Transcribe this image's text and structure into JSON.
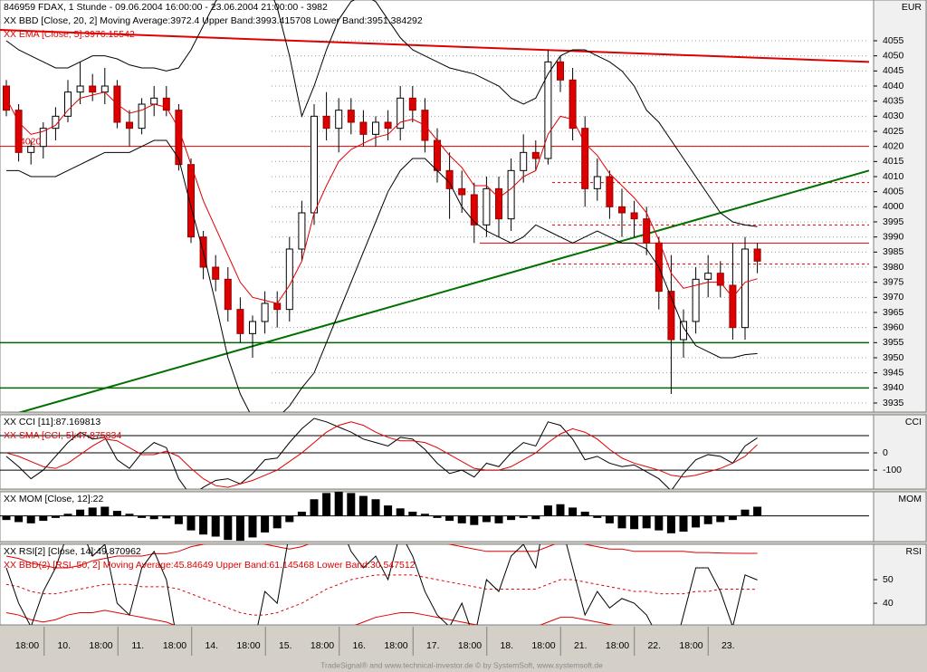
{
  "chart_data": [
    {
      "type": "candlestick",
      "title": "846959  FDAX, 1 Stunde - 09.06.2004 16:00:00 - 23.06.2004 21:00:00 - 3982",
      "unit": "EUR",
      "legend": [
        {
          "text": "XX BBD [Close, 20, 2] Moving Average:3972.4 Upper Band:3993.415708 Lower Band:3951.384292",
          "color": "#000000"
        },
        {
          "text": "XX EMA [Close, 5]:3976.15542",
          "color": "#e00000"
        }
      ],
      "annotation": "4020",
      "ylim": [
        3932,
        4068.5
      ],
      "yticks": [
        3935,
        3940,
        3945,
        3950,
        3955,
        3960,
        3965,
        3970,
        3975,
        3980,
        3985,
        3990,
        3995,
        4000,
        4005,
        4010,
        4015,
        4020,
        4025,
        4030,
        4035,
        4040,
        4045,
        4050,
        4055
      ],
      "up_color": "#ffffff",
      "down_color": "#dd0000",
      "ohlc": [
        [
          4040,
          4042,
          4030,
          4032
        ],
        [
          4032,
          4034,
          4015,
          4018
        ],
        [
          4018,
          4022,
          4014,
          4020
        ],
        [
          4020,
          4028,
          4016,
          4026
        ],
        [
          4026,
          4033,
          4022,
          4030
        ],
        [
          4030,
          4042,
          4028,
          4038
        ],
        [
          4038,
          4048,
          4034,
          4040
        ],
        [
          4040,
          4044,
          4035,
          4038
        ],
        [
          4038,
          4046,
          4034,
          4040
        ],
        [
          4040,
          4042,
          4026,
          4028
        ],
        [
          4028,
          4032,
          4020,
          4026
        ],
        [
          4026,
          4036,
          4024,
          4034
        ],
        [
          4034,
          4040,
          4030,
          4036
        ],
        [
          4036,
          4040,
          4030,
          4032
        ],
        [
          4032,
          4034,
          4012,
          4014
        ],
        [
          4014,
          4016,
          3988,
          3990
        ],
        [
          3990,
          3992,
          3976,
          3980
        ],
        [
          3980,
          3984,
          3972,
          3976
        ],
        [
          3976,
          3980,
          3962,
          3966
        ],
        [
          3966,
          3970,
          3955,
          3958
        ],
        [
          3958,
          3964,
          3950,
          3962
        ],
        [
          3962,
          3972,
          3958,
          3968
        ],
        [
          3968,
          3972,
          3960,
          3966
        ],
        [
          3966,
          3990,
          3962,
          3986
        ],
        [
          3986,
          4002,
          3982,
          3998
        ],
        [
          3998,
          4034,
          3994,
          4030
        ],
        [
          4030,
          4038,
          4022,
          4026
        ],
        [
          4026,
          4036,
          4018,
          4032
        ],
        [
          4032,
          4036,
          4024,
          4028
        ],
        [
          4028,
          4032,
          4020,
          4024
        ],
        [
          4024,
          4030,
          4020,
          4028
        ],
        [
          4028,
          4032,
          4022,
          4026
        ],
        [
          4026,
          4040,
          4022,
          4036
        ],
        [
          4036,
          4040,
          4028,
          4032
        ],
        [
          4032,
          4036,
          4018,
          4022
        ],
        [
          4022,
          4026,
          4008,
          4012
        ],
        [
          4012,
          4018,
          3996,
          4006
        ],
        [
          4006,
          4012,
          3998,
          4004
        ],
        [
          4004,
          4008,
          3988,
          3994
        ],
        [
          3994,
          4010,
          3990,
          4006
        ],
        [
          4006,
          4010,
          3990,
          3996
        ],
        [
          3996,
          4016,
          3992,
          4012
        ],
        [
          4012,
          4024,
          4008,
          4018
        ],
        [
          4018,
          4022,
          4012,
          4016
        ],
        [
          4016,
          4052,
          4014,
          4048
        ],
        [
          4048,
          4050,
          4038,
          4042
        ],
        [
          4042,
          4046,
          4022,
          4026
        ],
        [
          4026,
          4030,
          4000,
          4006
        ],
        [
          4006,
          4016,
          4002,
          4010
        ],
        [
          4010,
          4012,
          3996,
          4000
        ],
        [
          4000,
          4006,
          3990,
          3998
        ],
        [
          3998,
          4002,
          3990,
          3996
        ],
        [
          3996,
          4000,
          3984,
          3988
        ],
        [
          3988,
          3990,
          3966,
          3972
        ],
        [
          3972,
          3984,
          3938,
          3956
        ],
        [
          3956,
          3966,
          3950,
          3962
        ],
        [
          3962,
          3980,
          3958,
          3976
        ],
        [
          3976,
          3984,
          3970,
          3978
        ],
        [
          3978,
          3982,
          3970,
          3974
        ],
        [
          3974,
          3988,
          3956,
          3960
        ],
        [
          3960,
          3990,
          3956,
          3986
        ],
        [
          3986,
          3988,
          3978,
          3982
        ]
      ],
      "overlays": [
        {
          "color": "#000000",
          "values": [
            4055,
            4052,
            4050,
            4048,
            4046,
            4046,
            4048,
            4050,
            4050,
            4049,
            4047,
            4046,
            4046,
            4045,
            4046,
            4052,
            4060,
            4068,
            4074,
            4078,
            4080,
            4076,
            4066,
            4050,
            4030,
            4040,
            4052,
            4062,
            4068,
            4070,
            4068,
            4062,
            4056,
            4052,
            4050,
            4048,
            4046,
            4045,
            4044,
            4042,
            4040,
            4036,
            4034,
            4036,
            4044,
            4050,
            4052,
            4052,
            4050,
            4048,
            4045,
            4040,
            4032,
            4028,
            4022,
            4016,
            4010,
            4004,
            3998,
            3995,
            3994,
            3993.42
          ]
        },
        {
          "color": "#000000",
          "values": [
            4012,
            4012,
            4010,
            4010,
            4010,
            4012,
            4014,
            4016,
            4018,
            4018,
            4018,
            4020,
            4022,
            4022,
            4016,
            4000,
            3985,
            3968,
            3950,
            3938,
            3930,
            3928,
            3930,
            3934,
            3940,
            3945,
            3955,
            3965,
            3975,
            3985,
            3995,
            4005,
            4012,
            4016,
            4016,
            4012,
            4008,
            4000,
            3995,
            3992,
            3990,
            3988,
            3990,
            3994,
            3992,
            3990,
            3988,
            3990,
            3992,
            3990,
            3988,
            3988,
            3986,
            3980,
            3970,
            3960,
            3954,
            3952,
            3950,
            3950,
            3951,
            3951.38
          ]
        },
        {
          "color": "#e00000",
          "values": [
            4036,
            4028,
            4024,
            4025,
            4027,
            4032,
            4036,
            4037,
            4038,
            4034,
            4031,
            4032,
            4034,
            4033,
            4026,
            4014,
            4002,
            3993,
            3984,
            3975,
            3970,
            3969,
            3968,
            3974,
            3982,
            3998,
            4007,
            4015,
            4019,
            4021,
            4023,
            4024,
            4028,
            4029,
            4027,
            4022,
            4017,
            4013,
            4007,
            4007,
            4003,
            4006,
            4010,
            4012,
            4024,
            4030,
            4029,
            4021,
            4017,
            4011,
            4007,
            4003,
            3998,
            3989,
            3978,
            3973,
            3974,
            3975,
            3975,
            3970,
            3975,
            3976.16
          ]
        }
      ],
      "levels": [
        {
          "value": 4020,
          "color": "#e00000"
        },
        {
          "value": 3955,
          "color": "#006400"
        },
        {
          "value": 3940,
          "color": "#006400"
        },
        {
          "value": 3988,
          "color": "#e00000"
        }
      ],
      "dashed_levels": [
        4008,
        3994,
        3981
      ],
      "dashed_color": "#e00000",
      "trendlines": [
        {
          "color": "#e00000",
          "values": [
            4058.6,
            4048
          ]
        },
        {
          "color": "#007000",
          "values": [
            3930,
            4012
          ]
        }
      ]
    },
    {
      "type": "line",
      "unit": "CCI",
      "legend": [
        {
          "text": "XX CCI [11]:87.169813",
          "color": "#000000"
        },
        {
          "text": "XX SMA [CCI, 5]:47.875834",
          "color": "#e00000"
        }
      ],
      "ylim": [
        -210,
        221
      ],
      "yticks": [
        0,
        -100
      ],
      "levels": [
        100,
        0,
        -100
      ],
      "overlays": [
        {
          "color": "#000000",
          "values": [
            -20,
            -80,
            -150,
            -100,
            -20,
            60,
            120,
            80,
            90,
            -40,
            -90,
            0,
            60,
            30,
            -150,
            -250,
            -200,
            -160,
            -150,
            -180,
            -120,
            -40,
            -30,
            60,
            140,
            200,
            180,
            150,
            120,
            80,
            60,
            40,
            90,
            80,
            20,
            -60,
            -120,
            -100,
            -140,
            -60,
            -80,
            0,
            60,
            40,
            180,
            160,
            80,
            -40,
            -20,
            -60,
            -80,
            -70,
            -110,
            -150,
            -220,
            -120,
            -40,
            -10,
            -20,
            -60,
            40,
            87.17
          ]
        },
        {
          "color": "#e00000",
          "values": [
            0,
            -20,
            -50,
            -80,
            -90,
            -60,
            -10,
            40,
            80,
            70,
            30,
            -10,
            -10,
            10,
            -20,
            -90,
            -150,
            -190,
            -200,
            -180,
            -160,
            -130,
            -100,
            -50,
            0,
            60,
            120,
            160,
            180,
            160,
            120,
            90,
            70,
            70,
            60,
            30,
            -10,
            -50,
            -90,
            -100,
            -100,
            -80,
            -40,
            0,
            60,
            110,
            140,
            120,
            80,
            20,
            -30,
            -60,
            -80,
            -100,
            -130,
            -140,
            -130,
            -110,
            -90,
            -60,
            -20,
            47.88
          ]
        }
      ]
    },
    {
      "type": "bar",
      "unit": "MOM",
      "legend": [
        {
          "text": "XX MOM [Close, 12]:22",
          "color": "#000000"
        }
      ],
      "ylim": [
        -62,
        58
      ],
      "color": "#000000",
      "values": [
        -10,
        -15,
        -18,
        -12,
        -5,
        5,
        15,
        20,
        22,
        12,
        5,
        -5,
        -8,
        -6,
        -20,
        -35,
        -45,
        -50,
        -58,
        -60,
        -52,
        -40,
        -30,
        -15,
        10,
        40,
        55,
        58,
        55,
        48,
        40,
        25,
        18,
        10,
        5,
        -5,
        -12,
        -18,
        -22,
        -15,
        -18,
        -10,
        -5,
        -8,
        25,
        28,
        20,
        10,
        -5,
        -18,
        -30,
        -32,
        -30,
        -35,
        -42,
        -38,
        -28,
        -20,
        -15,
        -10,
        15,
        22
      ]
    },
    {
      "type": "line",
      "unit": "RSI",
      "legend": [
        {
          "text": "XX RSI[2] [Close, 14]:49.870962",
          "color": "#000000"
        },
        {
          "text": "XX BBD(2) [RSI, 50, 2] Moving Average:45.84649 Upper Band:61.145468 Lower Band:30.547512",
          "color": "#e00000"
        }
      ],
      "ylim": [
        30.8,
        65
      ],
      "yticks": [
        50,
        40
      ],
      "overlays": [
        {
          "color": "#e00000",
          "values": [
            60,
            59,
            57,
            56,
            55,
            55,
            56,
            58,
            59,
            60,
            60,
            60,
            61,
            61,
            62,
            64,
            65,
            66,
            66,
            67,
            66,
            65,
            64,
            63,
            64,
            66,
            68,
            69,
            70,
            70,
            70,
            69,
            68,
            68,
            67,
            66,
            65,
            64,
            63,
            62,
            62,
            62,
            62,
            62,
            64,
            66,
            66,
            65,
            64,
            63,
            63,
            62,
            62,
            62,
            62,
            62,
            61.5,
            61.5,
            61.3,
            61.2,
            61.15,
            61.15
          ]
        },
        {
          "color": "#e00000",
          "dashed": true,
          "values": [
            48,
            47,
            45,
            44,
            44,
            45,
            46,
            47,
            48,
            48,
            48,
            47,
            47,
            47,
            46,
            44,
            42,
            40,
            38,
            36,
            35,
            35,
            36,
            38,
            40,
            43,
            46,
            48,
            50,
            51,
            52,
            52,
            52,
            52,
            51,
            50,
            49,
            48,
            47,
            46,
            46,
            46,
            46,
            46,
            48,
            50,
            50,
            49,
            48,
            47,
            46,
            45,
            45,
            44,
            44,
            44,
            45,
            45,
            46,
            46,
            46,
            45.85
          ]
        },
        {
          "color": "#e00000",
          "values": [
            36,
            35,
            33,
            32,
            33,
            35,
            36,
            36,
            37,
            36,
            35,
            34,
            33,
            32,
            30,
            25,
            20,
            15,
            10,
            5,
            4,
            5,
            8,
            13,
            16,
            20,
            24,
            27,
            30,
            32,
            34,
            35,
            36,
            36,
            35,
            34,
            33,
            32,
            31,
            30,
            30,
            30,
            30,
            30,
            32,
            34,
            34,
            33,
            32,
            31,
            30,
            29,
            28,
            28,
            27,
            27,
            28,
            29,
            29,
            30,
            30.5,
            30.55
          ]
        },
        {
          "color": "#000000",
          "values": [
            55,
            40,
            30,
            45,
            55,
            70,
            72,
            60,
            65,
            40,
            35,
            55,
            62,
            50,
            20,
            10,
            8,
            15,
            12,
            5,
            20,
            45,
            40,
            70,
            80,
            90,
            70,
            75,
            62,
            55,
            60,
            50,
            70,
            60,
            45,
            35,
            30,
            40,
            25,
            50,
            45,
            60,
            65,
            55,
            85,
            75,
            55,
            35,
            45,
            38,
            42,
            40,
            35,
            25,
            15,
            35,
            55,
            55,
            45,
            30,
            52,
            49.87
          ]
        }
      ]
    }
  ],
  "x_axis": {
    "labels": [
      "18:00",
      "10.",
      "18:00",
      "11.",
      "18:00",
      "14.",
      "18:00",
      "15.",
      "18:00",
      "16.",
      "18:00",
      "17.",
      "18:00",
      "18.",
      "18:00",
      "21.",
      "18:00",
      "22.",
      "18:00",
      "23."
    ]
  },
  "footer": "TradeSignal® and www.technical-investor.de © by SystemSoft, www.systemsoft.de"
}
